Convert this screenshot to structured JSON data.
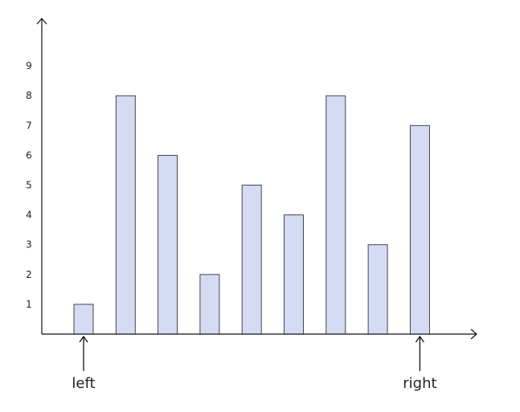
{
  "colors": {
    "bar_fill": "#d5dbf3",
    "bar_stroke": "#333333",
    "axis": "#111111",
    "text": "#222222"
  },
  "chart_data": {
    "type": "bar",
    "categories": [
      "",
      "",
      "",
      "",
      "",
      "",
      "",
      "",
      ""
    ],
    "values": [
      1,
      8,
      6,
      2,
      5,
      4,
      8,
      3,
      7
    ],
    "y_ticks": [
      1,
      2,
      3,
      4,
      5,
      6,
      7,
      8,
      9
    ],
    "ylim": [
      0,
      10
    ],
    "grid": false,
    "pointers": [
      {
        "label": "left",
        "index": 0
      },
      {
        "label": "right",
        "index": 8
      }
    ]
  }
}
